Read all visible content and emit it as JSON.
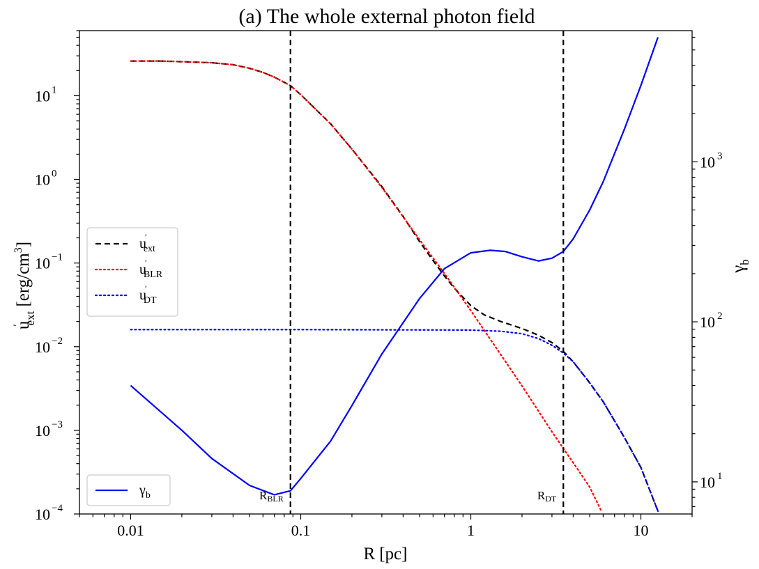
{
  "chart_data": {
    "type": "line",
    "title": "(a) The whole external photon field",
    "xlabel": {
      "main": "R",
      "unit": "[pc]"
    },
    "ylabel_left": {
      "main": "u",
      "prime": "′",
      "sub": "ext",
      "unit": "[erg/cm",
      "sup": "3",
      "close": "]"
    },
    "ylabel_right": {
      "main": "γ",
      "sub": "b"
    },
    "xscale": "log",
    "yscale_left": "log",
    "yscale_right": "log",
    "xlim": [
      0.005,
      20
    ],
    "ylim_left": [
      0.0001,
      60
    ],
    "ylim_right": [
      6.3,
      6600
    ],
    "x_ticks": [
      {
        "value": 0.01,
        "label": "0.01"
      },
      {
        "value": 0.1,
        "label": "0.1"
      },
      {
        "value": 1,
        "label": "1"
      },
      {
        "value": 10,
        "label": "10"
      }
    ],
    "y_left_ticks": [
      {
        "value": 10,
        "base": "10",
        "exp": "1"
      },
      {
        "value": 1,
        "base": "10",
        "exp": "0"
      },
      {
        "value": 0.1,
        "base": "10",
        "exp": "−1"
      },
      {
        "value": 0.01,
        "base": "10",
        "exp": "−2"
      },
      {
        "value": 0.001,
        "base": "10",
        "exp": "−3"
      },
      {
        "value": 0.0001,
        "base": "10",
        "exp": "−4"
      }
    ],
    "y_right_ticks": [
      {
        "value": 1000,
        "base": "10",
        "exp": "3"
      },
      {
        "value": 100,
        "base": "10",
        "exp": "2"
      },
      {
        "value": 10,
        "base": "10",
        "exp": "1"
      }
    ],
    "vlines": [
      {
        "x": 0.087,
        "label": "R",
        "sub": "BLR",
        "style": "dashed",
        "color": "#000000"
      },
      {
        "x": 3.5,
        "label": "R",
        "sub": "DT",
        "style": "dashed",
        "color": "#000000"
      }
    ],
    "series": [
      {
        "name": "u_ext",
        "legend_main": "u",
        "legend_prime": "′",
        "legend_sub": "ext",
        "axis": "left",
        "color": "#000000",
        "style": "dashed",
        "x": [
          0.01,
          0.015,
          0.02,
          0.03,
          0.04,
          0.05,
          0.06,
          0.07,
          0.087,
          0.1,
          0.15,
          0.2,
          0.3,
          0.4,
          0.5,
          0.6,
          0.7,
          0.8,
          1.0,
          1.2,
          1.5,
          2.0,
          2.5,
          3.0,
          3.5,
          4.0,
          5.0,
          6.0,
          7.0,
          8.0,
          10.0,
          12.6
        ],
        "y": [
          26,
          26,
          25.5,
          24.8,
          23.5,
          21.3,
          19.0,
          16.7,
          13.2,
          10.3,
          4.6,
          2.3,
          0.82,
          0.36,
          0.18,
          0.107,
          0.07,
          0.05,
          0.031,
          0.024,
          0.02,
          0.0165,
          0.0137,
          0.0112,
          0.0088,
          0.0066,
          0.0037,
          0.0022,
          0.0013,
          0.00082,
          0.00036,
          0.000108
        ]
      },
      {
        "name": "u_BLR",
        "legend_main": "u",
        "legend_prime": "′",
        "legend_sub": "BLR",
        "axis": "left",
        "color": "#ff0000",
        "style": "dotted",
        "x": [
          0.01,
          0.015,
          0.02,
          0.03,
          0.04,
          0.05,
          0.06,
          0.07,
          0.087,
          0.1,
          0.15,
          0.2,
          0.3,
          0.5,
          0.7,
          1.0,
          2.0,
          3.0,
          4.0,
          5.0,
          5.9
        ],
        "y": [
          26,
          26,
          25.5,
          24.8,
          23.5,
          21.3,
          19.0,
          16.7,
          13.2,
          10.3,
          4.6,
          2.3,
          0.8,
          0.19,
          0.075,
          0.027,
          0.0034,
          0.00096,
          0.00041,
          0.00021,
          0.000105
        ]
      },
      {
        "name": "u_DT",
        "legend_main": "u",
        "legend_prime": "′",
        "legend_sub": "DT",
        "axis": "left",
        "color": "#0000ff",
        "style": "dotted",
        "x": [
          0.01,
          0.1,
          1.0,
          1.5,
          2.0,
          2.5,
          3.0,
          3.5,
          4.0,
          5.0,
          6.0,
          7.0,
          8.0,
          10.0,
          12.6
        ],
        "y": [
          0.016,
          0.016,
          0.0158,
          0.0153,
          0.0143,
          0.0125,
          0.0104,
          0.0084,
          0.0066,
          0.0037,
          0.0022,
          0.0013,
          0.00082,
          0.00036,
          0.000108
        ]
      },
      {
        "name": "gamma_b",
        "legend_main": "γ",
        "legend_prime": "",
        "legend_sub": "b",
        "axis": "right",
        "color": "#0000ff",
        "style": "solid",
        "x": [
          0.01,
          0.02,
          0.03,
          0.05,
          0.07,
          0.087,
          0.1,
          0.15,
          0.2,
          0.3,
          0.5,
          0.7,
          1.0,
          1.3,
          1.6,
          2.0,
          2.5,
          3.0,
          3.5,
          4.0,
          5.0,
          6.0,
          8.0,
          10.0,
          12.6
        ],
        "y": [
          40,
          21,
          14,
          9.5,
          8.3,
          8.8,
          10.5,
          18,
          30,
          63,
          140,
          215,
          270,
          280,
          275,
          255,
          240,
          250,
          275,
          330,
          500,
          750,
          1600,
          3000,
          6000
        ]
      }
    ],
    "legend_upper_entries": [
      "u_ext",
      "u_BLR",
      "u_DT"
    ],
    "legend_upper_position": "center-left",
    "legend_lower_entries": [
      "gamma_b"
    ],
    "legend_lower_position": "lower-left",
    "grid": false
  }
}
